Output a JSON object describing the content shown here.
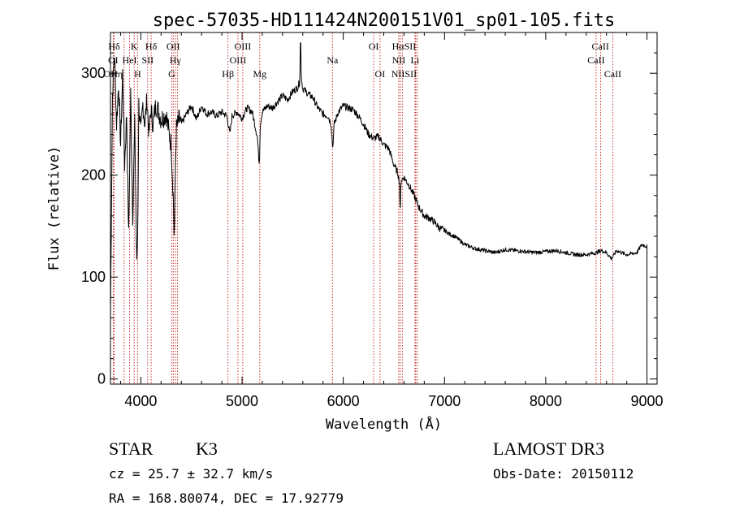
{
  "chart_data": {
    "type": "line",
    "title": "spec-57035-HD111424N200151V01_sp01-105.fits",
    "xlabel": "Wavelength (Å)",
    "ylabel": "Flux (relative)",
    "xlim": [
      3700,
      9100
    ],
    "ylim": [
      -5,
      340
    ],
    "xticks": [
      4000,
      5000,
      6000,
      7000,
      8000,
      9000
    ],
    "yticks": [
      0,
      100,
      200,
      300
    ],
    "series": [
      {
        "name": "spectrum",
        "x": [
          3700,
          3720,
          3740,
          3760,
          3780,
          3800,
          3820,
          3840,
          3860,
          3880,
          3900,
          3920,
          3940,
          3960,
          3970,
          3980,
          4000,
          4020,
          4040,
          4060,
          4080,
          4100,
          4120,
          4150,
          4200,
          4250,
          4280,
          4300,
          4320,
          4330,
          4340,
          4350,
          4380,
          4400,
          4450,
          4500,
          4550,
          4600,
          4650,
          4700,
          4750,
          4800,
          4850,
          4880,
          4900,
          4950,
          5000,
          5050,
          5100,
          5150,
          5170,
          5180,
          5200,
          5250,
          5300,
          5350,
          5400,
          5450,
          5500,
          5550,
          5570,
          5578,
          5585,
          5600,
          5650,
          5700,
          5750,
          5800,
          5850,
          5880,
          5895,
          5910,
          5950,
          6000,
          6050,
          6100,
          6150,
          6200,
          6250,
          6300,
          6350,
          6400,
          6450,
          6500,
          6540,
          6556,
          6563,
          6570,
          6600,
          6650,
          6700,
          6750,
          6800,
          6850,
          6900,
          6950,
          7000,
          7050,
          7100,
          7150,
          7200,
          7300,
          7400,
          7500,
          7600,
          7700,
          7800,
          7900,
          8000,
          8100,
          8200,
          8300,
          8400,
          8500,
          8550,
          8600,
          8650,
          8700,
          8750,
          8800,
          8850,
          8900,
          8950,
          9000
        ],
        "values": [
          60,
          280,
          320,
          250,
          290,
          230,
          300,
          210,
          260,
          140,
          280,
          160,
          250,
          110,
          150,
          270,
          240,
          270,
          250,
          275,
          240,
          265,
          250,
          270,
          255,
          260,
          240,
          230,
          180,
          135,
          200,
          245,
          255,
          250,
          260,
          268,
          255,
          268,
          260,
          262,
          258,
          262,
          258,
          240,
          258,
          262,
          256,
          266,
          262,
          238,
          210,
          250,
          262,
          268,
          266,
          272,
          278,
          274,
          282,
          286,
          292,
          342,
          296,
          285,
          280,
          276,
          266,
          260,
          258,
          250,
          226,
          250,
          262,
          268,
          266,
          264,
          258,
          250,
          240,
          236,
          238,
          230,
          226,
          210,
          202,
          192,
          160,
          195,
          198,
          190,
          180,
          168,
          160,
          158,
          154,
          148,
          146,
          142,
          140,
          136,
          132,
          128,
          126,
          124,
          127,
          126,
          125,
          124,
          125,
          126,
          124,
          122,
          122,
          124,
          126,
          124,
          118,
          126,
          124,
          122,
          123,
          124,
          132,
          130
        ]
      }
    ],
    "spectral_lines": [
      {
        "label": "Hδ",
        "x": 3736,
        "row": 1
      },
      {
        "label": "K",
        "x": 3934,
        "row": 1
      },
      {
        "label": "Hδ",
        "x": 4102,
        "row": 1
      },
      {
        "label": "OII",
        "x": 4320,
        "row": 1
      },
      {
        "label": "OIII",
        "x": 5007,
        "row": 1
      },
      {
        "label": "OI",
        "x": 6300,
        "row": 1
      },
      {
        "label": "HαSII",
        "x": 6600,
        "row": 1
      },
      {
        "label": "CaII",
        "x": 8540,
        "row": 1
      },
      {
        "label": "OI",
        "x": 3727,
        "row": 2
      },
      {
        "label": "HeI",
        "x": 3889,
        "row": 2
      },
      {
        "label": "SII",
        "x": 4068,
        "row": 2
      },
      {
        "label": "Hγ",
        "x": 4341,
        "row": 2
      },
      {
        "label": "OIII",
        "x": 4959,
        "row": 2
      },
      {
        "label": "Na",
        "x": 5893,
        "row": 2
      },
      {
        "label": "NII",
        "x": 6548,
        "row": 2
      },
      {
        "label": "Li",
        "x": 6708,
        "row": 2
      },
      {
        "label": "CaII",
        "x": 8498,
        "row": 2
      },
      {
        "label": "OHη",
        "x": 3727,
        "row": 3
      },
      {
        "label": "H",
        "x": 3968,
        "row": 3
      },
      {
        "label": "G",
        "x": 4305,
        "row": 3
      },
      {
        "label": "Hβ",
        "x": 4861,
        "row": 3
      },
      {
        "label": "Mg",
        "x": 5175,
        "row": 3
      },
      {
        "label": "OI",
        "x": 6363,
        "row": 3
      },
      {
        "label": "NIISII",
        "x": 6600,
        "row": 3
      },
      {
        "label": "CaII",
        "x": 8662,
        "row": 3
      }
    ],
    "line_positions": [
      3727,
      3736,
      3835,
      3889,
      3934,
      3968,
      4068,
      4102,
      4305,
      4320,
      4341,
      4363,
      4861,
      4959,
      5007,
      5175,
      5893,
      6300,
      6363,
      6548,
      6563,
      6583,
      6708,
      6716,
      6731,
      8498,
      8542,
      8662
    ],
    "legend": "none",
    "grid": false
  },
  "info": {
    "object_class": "STAR",
    "subclass": "K3",
    "survey": "LAMOST DR3",
    "redshift": "cz = 25.7 ± 32.7 km/s",
    "obs_date": "Obs-Date: 20150112",
    "coords": "RA = 168.80074, DEC =  17.92779"
  }
}
